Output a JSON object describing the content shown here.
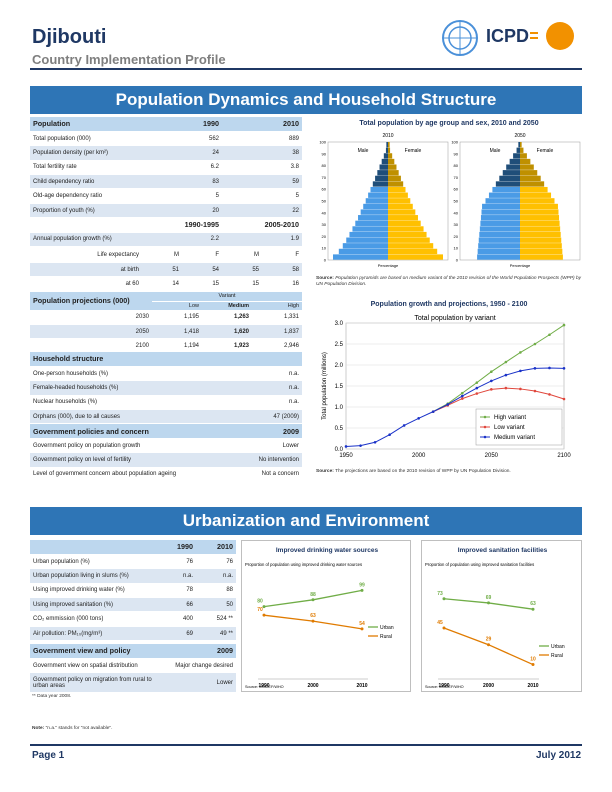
{
  "header": {
    "country": "Djibouti",
    "subtitle": "Country Implementation Profile",
    "logo_text": "ICPD",
    "logo_caption": "International Conference on Population and Development Beyond 2014"
  },
  "section1": {
    "title": "Population Dynamics and Household Structure",
    "population": {
      "label": "Population",
      "col1": "1990",
      "col2": "2010",
      "rows": [
        {
          "label": "Total population (000)",
          "v1": "562",
          "v2": "889"
        },
        {
          "label": "Population density (per km²)",
          "v1": "24",
          "v2": "38"
        },
        {
          "label": "Total fertility rate",
          "v1": "6.2",
          "v2": "3.8"
        },
        {
          "label": "Child dependency ratio",
          "v1": "83",
          "v2": "59"
        },
        {
          "label": "Old-age dependency ratio",
          "v1": "5",
          "v2": "5"
        },
        {
          "label": "Proportion of youth (%)",
          "v1": "20",
          "v2": "22"
        }
      ],
      "period1": "1990-1995",
      "period2": "2005-2010",
      "growth": {
        "label": "Annual population growth (%)",
        "v1": "2.2",
        "v2": "1.9"
      },
      "life_header": {
        "label": "Life expectancy",
        "cols": [
          "M",
          "F",
          "M",
          "F"
        ]
      },
      "life_rows": [
        {
          "label": "at birth",
          "vals": [
            "51",
            "54",
            "55",
            "58"
          ]
        },
        {
          "label": "at 60",
          "vals": [
            "14",
            "15",
            "15",
            "16"
          ]
        }
      ]
    },
    "projections": {
      "label": "Population projections (000)",
      "variant": "Variant",
      "cols": [
        "Low",
        "Medium",
        "High"
      ],
      "rows": [
        {
          "year": "2030",
          "vals": [
            "1,195",
            "1,263",
            "1,331"
          ]
        },
        {
          "year": "2050",
          "vals": [
            "1,418",
            "1,620",
            "1,837"
          ]
        },
        {
          "year": "2100",
          "vals": [
            "1,194",
            "1,923",
            "2,946"
          ]
        }
      ]
    },
    "household": {
      "label": "Household structure",
      "rows": [
        {
          "label": "One-person households (%)",
          "val": "n.a."
        },
        {
          "label": "Female-headed households (%)",
          "val": "n.a."
        },
        {
          "label": "Nuclear households (%)",
          "val": "n.a."
        },
        {
          "label": "Orphans (000), due to all causes",
          "val": "47 (2009)"
        }
      ]
    },
    "policies": {
      "label": "Government policies and concern",
      "year": "2009",
      "rows": [
        {
          "label": "Government policy on population growth",
          "val": "Lower"
        },
        {
          "label": "Government policy on level of fertility",
          "val": "No intervention"
        },
        {
          "label": "Level of government concern about population ageing",
          "val": "Not a concern"
        }
      ]
    },
    "pyramid": {
      "title": "Total population by age group and sex, 2010 and 2050",
      "year_a": "2010",
      "year_b": "2050",
      "male": "Male",
      "female": "Female",
      "ages": [
        "0",
        "10",
        "20",
        "30",
        "40",
        "50",
        "60",
        "70",
        "80",
        "90",
        "100"
      ],
      "xlabel": "Percentage",
      "source_label": "Source:",
      "source_text": "Population pyramids are based on medium variant of the 2010 revision of the World Population Prospects (WPP) by UN Population Division."
    },
    "growth_chart": {
      "title": "Population growth and projections, 1950 - 2100",
      "source_label": "Source:",
      "source_text": "The projections are based on the 2010 revision of WPP by UN Population Division."
    }
  },
  "section2": {
    "title": "Urbanization and Environment",
    "table": {
      "col1": "1990",
      "col2": "2010",
      "rows": [
        {
          "label": "Urban population (%)",
          "v1": "76",
          "v2": "76"
        },
        {
          "label": "Urban population living in slums (%)",
          "v1": "n.a.",
          "v2": "n.a."
        },
        {
          "label": "Using improved drinking water (%)",
          "v1": "78",
          "v2": "88"
        },
        {
          "label": "Using improved sanitation (%)",
          "v1": "66",
          "v2": "50"
        },
        {
          "label": "CO₂ emmission (000 tons)",
          "v1": "400",
          "v2": "524 **"
        },
        {
          "label": "Air pollution: PM₁₀(mg/m³)",
          "v1": "69",
          "v2": "49 **"
        }
      ],
      "policy_label": "Government view and policy",
      "policy_year": "2009",
      "policy_rows": [
        {
          "label": "Government view on spatial distribution",
          "val": "Major change desired"
        },
        {
          "label": "Government policy on migration from rural to urban areas",
          "val": "Lower"
        }
      ],
      "footnote": "** Data year 2008.",
      "note_label": "Note:",
      "note_text": "\"n.a.\" stands for \"not available\"."
    }
  },
  "footer": {
    "page": "Page 1",
    "date": "July 2012"
  },
  "chart_data": [
    {
      "type": "line",
      "title": "Total population by variant",
      "xlabel": "",
      "ylabel": "Total population (millions)",
      "xlim": [
        1950,
        2100
      ],
      "ylim": [
        0,
        3.0
      ],
      "xticks": [
        "1950",
        "2000",
        "2050",
        "2100"
      ],
      "yticks": [
        "0.0",
        "0.5",
        "1.0",
        "1.5",
        "2.0",
        "2.5",
        "3.0"
      ],
      "legend_position": "bottom-right",
      "series": [
        {
          "name": "High variant",
          "color": "#70ad47",
          "x": [
            2010,
            2020,
            2030,
            2040,
            2050,
            2060,
            2070,
            2080,
            2090,
            2100
          ],
          "values": [
            0.89,
            1.08,
            1.33,
            1.58,
            1.84,
            2.07,
            2.3,
            2.5,
            2.72,
            2.95
          ]
        },
        {
          "name": "Low variant",
          "color": "#e0473c",
          "x": [
            2010,
            2020,
            2030,
            2040,
            2050,
            2060,
            2070,
            2080,
            2090,
            2100
          ],
          "values": [
            0.89,
            1.04,
            1.2,
            1.32,
            1.42,
            1.45,
            1.43,
            1.38,
            1.3,
            1.19
          ]
        },
        {
          "name": "Medium variant",
          "color": "#1a32c8",
          "x": [
            1950,
            1960,
            1970,
            1980,
            1990,
            2000,
            2010,
            2020,
            2030,
            2040,
            2050,
            2060,
            2070,
            2080,
            2090,
            2100
          ],
          "values": [
            0.06,
            0.08,
            0.16,
            0.34,
            0.56,
            0.73,
            0.89,
            1.06,
            1.26,
            1.45,
            1.62,
            1.76,
            1.86,
            1.92,
            1.93,
            1.92
          ]
        }
      ]
    },
    {
      "type": "line",
      "title": "Improved drinking water sources",
      "subtitle": "Proportion of population using improved drinking water sources",
      "source": "Source: UNICEF/WHO",
      "categories": [
        "1990",
        "2000",
        "2010"
      ],
      "ylim": [
        0,
        110
      ],
      "series": [
        {
          "name": "Urban",
          "color": "#70ad47",
          "values": [
            80,
            88,
            99
          ]
        },
        {
          "name": "Rural",
          "color": "#e07b00",
          "values": [
            70,
            63,
            54
          ]
        }
      ]
    },
    {
      "type": "line",
      "title": "Improved sanitation facilities",
      "subtitle": "Proportion of population using improved sanitation facilities",
      "source": "Source: UNICEF/WHO",
      "categories": [
        "1990",
        "2000",
        "2010"
      ],
      "ylim": [
        0,
        90
      ],
      "series": [
        {
          "name": "Urban",
          "color": "#70ad47",
          "values": [
            73,
            69,
            63
          ]
        },
        {
          "name": "Rural",
          "color": "#e07b00",
          "values": [
            45,
            29,
            10
          ]
        }
      ]
    }
  ]
}
